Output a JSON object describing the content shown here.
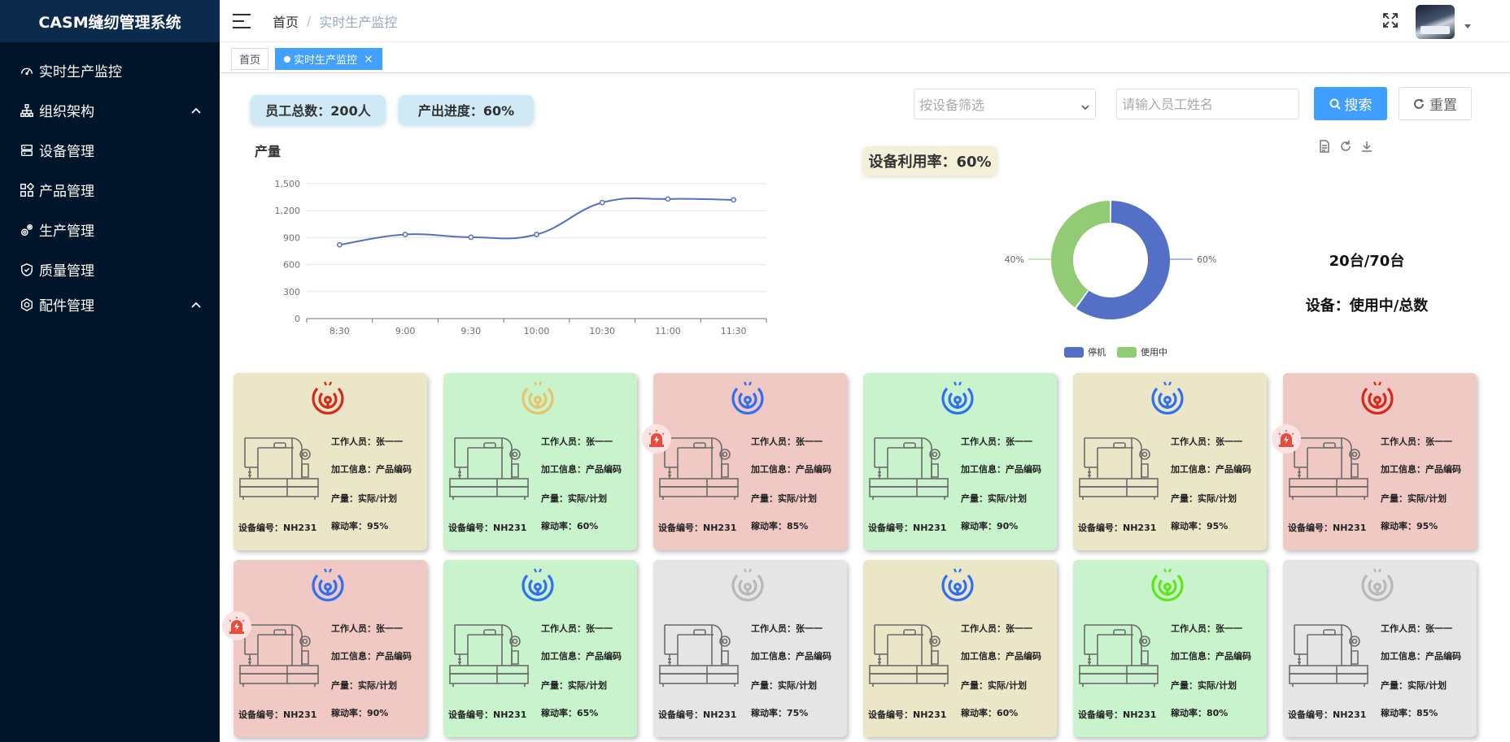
{
  "app": {
    "title": "CASM缝纫管理系统"
  },
  "sidebar": {
    "items": [
      {
        "label": "实时生产监控",
        "icon": "dashboard-icon",
        "expandable": false
      },
      {
        "label": "组织架构",
        "icon": "org-tree-icon",
        "expandable": true
      },
      {
        "label": "设备管理",
        "icon": "server-icon",
        "expandable": false
      },
      {
        "label": "产品管理",
        "icon": "grid-icon",
        "expandable": false
      },
      {
        "label": "生产管理",
        "icon": "gears-icon",
        "expandable": false
      },
      {
        "label": "质量管理",
        "icon": "shield-check-icon",
        "expandable": false
      },
      {
        "label": "配件管理",
        "icon": "eye-settings-icon",
        "expandable": true
      }
    ]
  },
  "header": {
    "breadcrumb_home": "首页",
    "breadcrumb_sep": "/",
    "breadcrumb_current": "实时生产监控"
  },
  "tags": {
    "home": "首页",
    "active": "实时生产监控",
    "close": "×"
  },
  "stats": {
    "employees": "员工总数：200人",
    "progress": "产出进度：60%",
    "utilization": "设备利用率：60%"
  },
  "filter": {
    "device_placeholder": "按设备筛选",
    "name_placeholder": "请输入员工姓名",
    "search_label": "搜索",
    "reset_label": "重置"
  },
  "line_chart": {
    "type": "line",
    "title": "产量",
    "categories": [
      "8:30",
      "9:00",
      "9:30",
      "10:00",
      "10:30",
      "11:00",
      "11:30"
    ],
    "values": [
      820,
      935,
      905,
      935,
      1290,
      1330,
      1320
    ],
    "y_ticks": [
      "0",
      "300",
      "600",
      "900",
      "1,200",
      "1,500"
    ],
    "ylim": [
      0,
      1500
    ],
    "color": "#5470c6"
  },
  "chart_data": [
    {
      "type": "line",
      "title": "产量",
      "categories": [
        "8:30",
        "9:00",
        "9:30",
        "10:00",
        "10:30",
        "11:00",
        "11:30"
      ],
      "values": [
        820,
        935,
        905,
        935,
        1290,
        1330,
        1320
      ],
      "ylim": [
        0,
        1500
      ],
      "grid": true
    },
    {
      "type": "pie",
      "variant": "donut",
      "labels": [
        "停机",
        "使用中"
      ],
      "values": [
        60,
        40
      ],
      "value_labels": [
        "60%",
        "40%"
      ],
      "colors": [
        "#5470c6",
        "#91cc75"
      ],
      "legend": "bottom"
    }
  ],
  "donut": {
    "labels": [
      "停机",
      "使用中"
    ],
    "values": [
      60,
      40
    ],
    "value_labels": [
      "60%",
      "40%"
    ],
    "colors": [
      "#5470c6",
      "#91cc75"
    ]
  },
  "device_summary": {
    "count": "20台/70台",
    "label": "设备：使用中/总数"
  },
  "card_labels": {
    "worker": "工作人员：张一一",
    "process": "加工信息：产品编码",
    "output": "产量：实际/计划",
    "code": "设备编号：NH231"
  },
  "cards": [
    {
      "status": "yellow",
      "signal": "#d8281a",
      "alarm": false,
      "rate": "稼动率：95%"
    },
    {
      "status": "green",
      "signal": "#e5c46b",
      "alarm": false,
      "rate": "稼动率：60%"
    },
    {
      "status": "red",
      "signal": "#2f6ff0",
      "alarm": true,
      "rate": "稼动率：85%"
    },
    {
      "status": "green",
      "signal": "#2f6ff0",
      "alarm": false,
      "rate": "稼动率：90%"
    },
    {
      "status": "yellow",
      "signal": "#2f6ff0",
      "alarm": false,
      "rate": "稼动率：95%"
    },
    {
      "status": "red",
      "signal": "#d8281a",
      "alarm": true,
      "rate": "稼动率：95%"
    },
    {
      "status": "red",
      "signal": "#2f6ff0",
      "alarm": true,
      "rate": "稼动率：90%"
    },
    {
      "status": "green",
      "signal": "#2f6ff0",
      "alarm": false,
      "rate": "稼动率：65%"
    },
    {
      "status": "gray",
      "signal": "#b8b8b8",
      "alarm": false,
      "rate": "稼动率：75%"
    },
    {
      "status": "yellow",
      "signal": "#2f6ff0",
      "alarm": false,
      "rate": "稼动率：60%"
    },
    {
      "status": "green",
      "signal": "#5fe61a",
      "alarm": false,
      "rate": "稼动率：80%"
    },
    {
      "status": "gray",
      "signal": "#b8b8b8",
      "alarm": false,
      "rate": "稼动率：85%"
    }
  ]
}
